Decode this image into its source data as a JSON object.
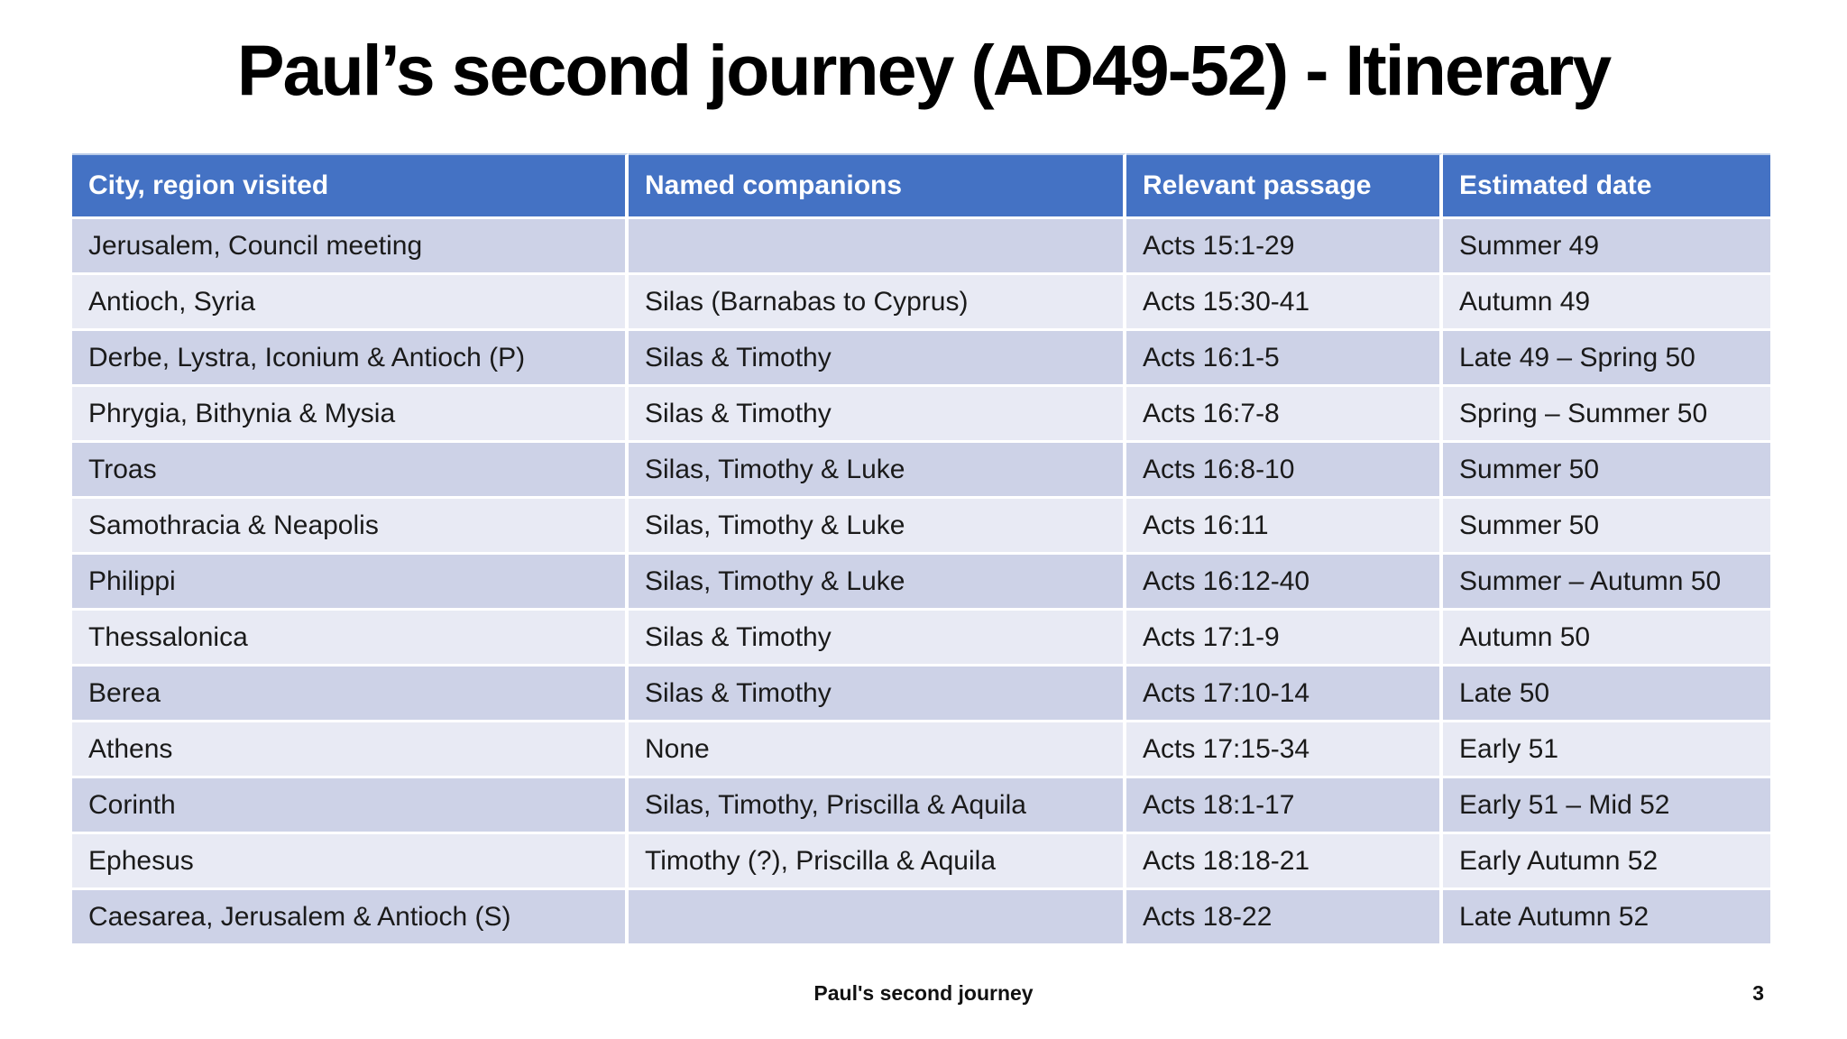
{
  "slide": {
    "title": "Paul’s second journey (AD49-52) - Itinerary",
    "footer": "Paul's second journey",
    "page_number": "3"
  },
  "table": {
    "headers": [
      "City, region visited",
      "Named companions",
      "Relevant passage",
      "Estimated date"
    ],
    "rows": [
      [
        "Jerusalem, Council meeting",
        "",
        "Acts 15:1-29",
        "Summer 49"
      ],
      [
        "Antioch, Syria",
        "Silas (Barnabas to Cyprus)",
        "Acts 15:30-41",
        "Autumn 49"
      ],
      [
        "Derbe, Lystra, Iconium & Antioch (P)",
        "Silas & Timothy",
        "Acts 16:1-5",
        "Late 49 – Spring 50"
      ],
      [
        "Phrygia, Bithynia & Mysia",
        "Silas & Timothy",
        "Acts 16:7-8",
        "Spring – Summer 50"
      ],
      [
        "Troas",
        "Silas, Timothy & Luke",
        "Acts 16:8-10",
        "Summer 50"
      ],
      [
        "Samothracia & Neapolis",
        "Silas, Timothy & Luke",
        "Acts 16:11",
        "Summer 50"
      ],
      [
        "Philippi",
        "Silas, Timothy & Luke",
        "Acts 16:12-40",
        "Summer – Autumn 50"
      ],
      [
        "Thessalonica",
        "Silas & Timothy",
        "Acts 17:1-9",
        "Autumn 50"
      ],
      [
        "Berea",
        "Silas & Timothy",
        "Acts 17:10-14",
        "Late 50"
      ],
      [
        "Athens",
        "None",
        "Acts 17:15-34",
        "Early 51"
      ],
      [
        "Corinth",
        "Silas, Timothy, Priscilla & Aquila",
        "Acts 18:1-17",
        "Early 51 – Mid 52"
      ],
      [
        "Ephesus",
        "Timothy (?), Priscilla & Aquila",
        "Acts 18:18-21",
        "Early Autumn 52"
      ],
      [
        "Caesarea, Jerusalem & Antioch (S)",
        "",
        "Acts 18-22",
        "Late Autumn 52"
      ]
    ],
    "colors": {
      "header_bg": "#4472C4",
      "header_text": "#FFFFFF",
      "band_dark": "#CDD2E7",
      "band_light": "#E8EAF4",
      "body_text": "#1A1A1A"
    }
  }
}
